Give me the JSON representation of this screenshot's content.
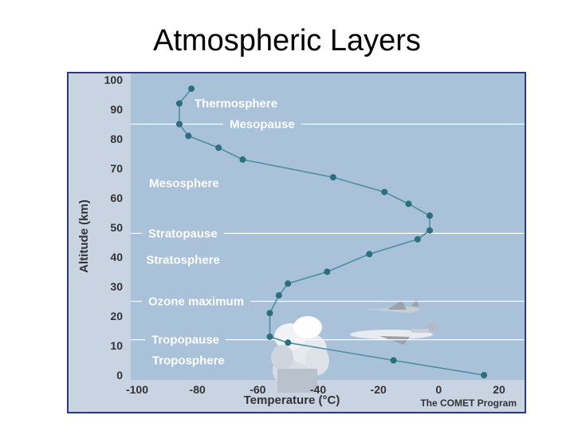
{
  "slide": {
    "title": "Atmospheric Layers"
  },
  "chart_data": {
    "type": "line",
    "title": "",
    "xlabel": "Temperature (°C)",
    "ylabel": "Altitude (km)",
    "xlim": [
      -100,
      20
    ],
    "ylim": [
      0,
      100
    ],
    "x_ticks": [
      -100,
      -80,
      -60,
      -40,
      -20,
      0,
      20
    ],
    "y_ticks": [
      0,
      10,
      20,
      30,
      40,
      50,
      60,
      70,
      80,
      90,
      100
    ],
    "grid": false,
    "series": [
      {
        "points": [
          {
            "x": 15,
            "y": 0
          },
          {
            "x": -15,
            "y": 5
          },
          {
            "x": -50,
            "y": 11
          },
          {
            "x": -56,
            "y": 13
          },
          {
            "x": -56,
            "y": 21
          },
          {
            "x": -53,
            "y": 27
          },
          {
            "x": -50,
            "y": 31
          },
          {
            "x": -37,
            "y": 35
          },
          {
            "x": -23,
            "y": 41
          },
          {
            "x": -7,
            "y": 46
          },
          {
            "x": -3,
            "y": 49
          },
          {
            "x": -3,
            "y": 54
          },
          {
            "x": -10,
            "y": 58
          },
          {
            "x": -18,
            "y": 62
          },
          {
            "x": -35,
            "y": 67
          },
          {
            "x": -65,
            "y": 73
          },
          {
            "x": -73,
            "y": 77
          },
          {
            "x": -83,
            "y": 81
          },
          {
            "x": -86,
            "y": 85
          },
          {
            "x": -86,
            "y": 92
          },
          {
            "x": -82,
            "y": 97
          }
        ]
      }
    ],
    "layer_boundaries": [
      {
        "label": "Mesopause",
        "y": 85
      },
      {
        "label": "Stratopause",
        "y": 48
      },
      {
        "label": "Ozone maximum",
        "y": 25
      },
      {
        "label": "Tropopause",
        "y": 12
      }
    ],
    "layer_labels": [
      {
        "label": "Thermosphere",
        "x": -81,
        "y": 92
      },
      {
        "label": "Mesosphere",
        "x": -96,
        "y": 65
      },
      {
        "label": "Stratosphere",
        "x": -97,
        "y": 39
      },
      {
        "label": "Troposphere",
        "x": -95,
        "y": 5
      }
    ],
    "credit": "The COMET Program",
    "colors": {
      "plot_background": "#a9c1d9",
      "line": "#4b8fa0",
      "marker": "#2a6f7e",
      "boundary_line": "#ffffff",
      "label_text": "#ffffff",
      "axis_text": "#333333"
    }
  }
}
